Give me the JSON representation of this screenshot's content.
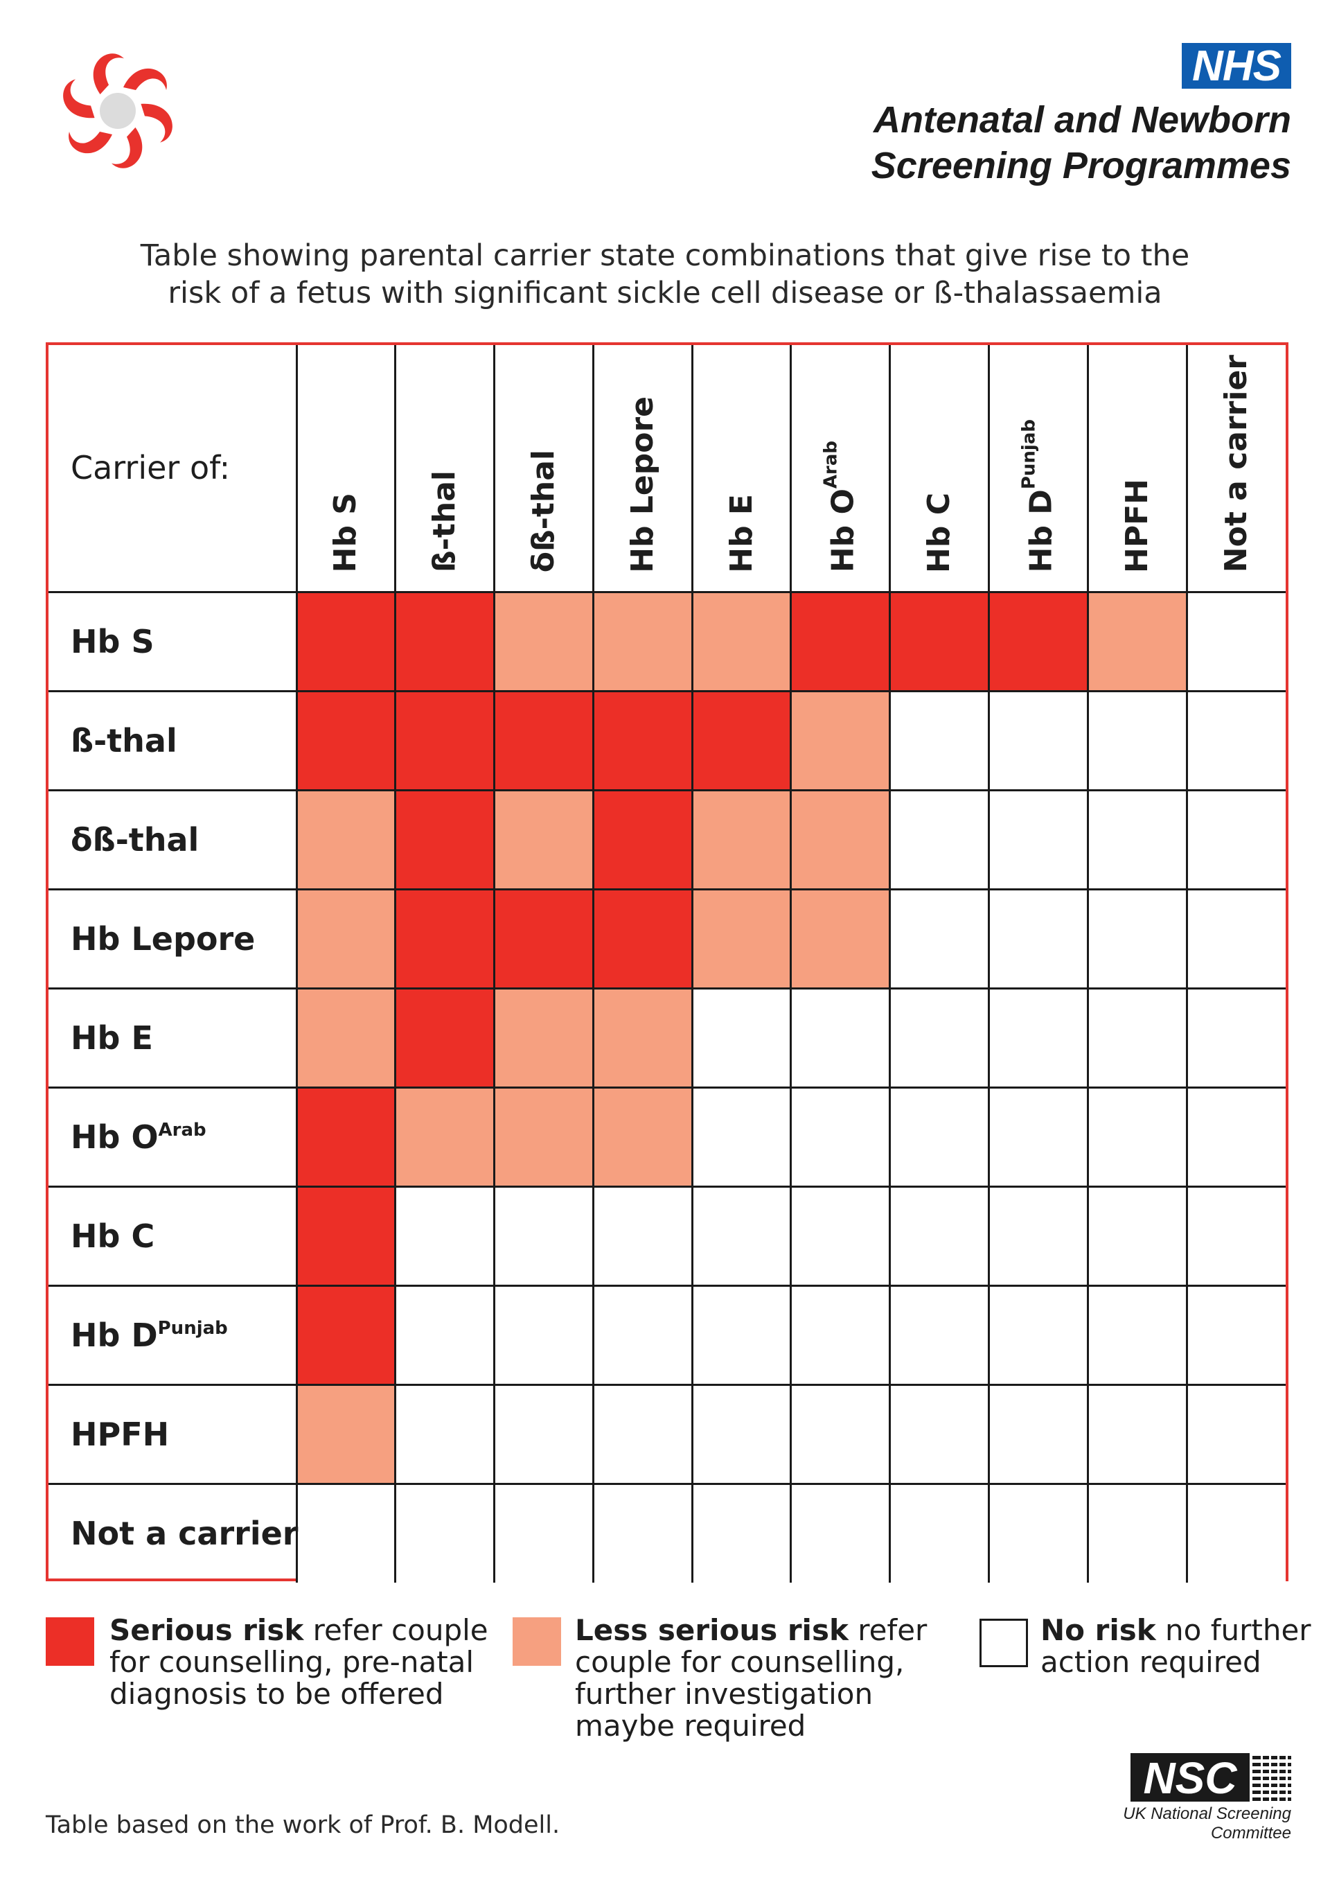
{
  "header": {
    "nhs_badge": "NHS",
    "org_line_1": "Antenatal and Newborn",
    "org_line_2": "Screening Programmes",
    "caption_line_1": "Table showing parental carrier state combinations that give rise to the",
    "caption_line_2": "risk of a fetus with significant sickle cell disease or ß-thalassaemia"
  },
  "table": {
    "corner_label": "Carrier of:",
    "columns": [
      {
        "base": "Hb S",
        "sup": ""
      },
      {
        "base": "ß-thal",
        "sup": ""
      },
      {
        "base": "δß-thal",
        "sup": ""
      },
      {
        "base": "Hb Lepore",
        "sup": ""
      },
      {
        "base": "Hb E",
        "sup": ""
      },
      {
        "base": "Hb O",
        "sup": "Arab"
      },
      {
        "base": "Hb C",
        "sup": ""
      },
      {
        "base": "Hb D",
        "sup": "Punjab"
      },
      {
        "base": "HPFH",
        "sup": ""
      },
      {
        "base": "Not a carrier",
        "sup": ""
      }
    ],
    "rows": [
      {
        "base": "Hb S",
        "sup": "",
        "cells": [
          "serious",
          "serious",
          "less",
          "less",
          "less",
          "serious",
          "serious",
          "serious",
          "less",
          "none"
        ]
      },
      {
        "base": "ß-thal",
        "sup": "",
        "cells": [
          "serious",
          "serious",
          "serious",
          "serious",
          "serious",
          "less",
          "none",
          "none",
          "none",
          "none"
        ]
      },
      {
        "base": "δß-thal",
        "sup": "",
        "cells": [
          "less",
          "serious",
          "less",
          "serious",
          "less",
          "less",
          "none",
          "none",
          "none",
          "none"
        ]
      },
      {
        "base": "Hb Lepore",
        "sup": "",
        "cells": [
          "less",
          "serious",
          "serious",
          "serious",
          "less",
          "less",
          "none",
          "none",
          "none",
          "none"
        ]
      },
      {
        "base": "Hb E",
        "sup": "",
        "cells": [
          "less",
          "serious",
          "less",
          "less",
          "none",
          "none",
          "none",
          "none",
          "none",
          "none"
        ]
      },
      {
        "base": "Hb O",
        "sup": "Arab",
        "cells": [
          "serious",
          "less",
          "less",
          "less",
          "none",
          "none",
          "none",
          "none",
          "none",
          "none"
        ]
      },
      {
        "base": "Hb C",
        "sup": "",
        "cells": [
          "serious",
          "none",
          "none",
          "none",
          "none",
          "none",
          "none",
          "none",
          "none",
          "none"
        ]
      },
      {
        "base": "Hb D",
        "sup": "Punjab",
        "cells": [
          "serious",
          "none",
          "none",
          "none",
          "none",
          "none",
          "none",
          "none",
          "none",
          "none"
        ]
      },
      {
        "base": "HPFH",
        "sup": "",
        "cells": [
          "less",
          "none",
          "none",
          "none",
          "none",
          "none",
          "none",
          "none",
          "none",
          "none"
        ]
      },
      {
        "base": "Not a carrier",
        "sup": "",
        "cells": [
          "none",
          "none",
          "none",
          "none",
          "none",
          "none",
          "none",
          "none",
          "none",
          "none"
        ]
      }
    ]
  },
  "legend": {
    "serious_bold": "Serious risk",
    "serious_rest": "refer couple for counselling, pre-natal diagnosis to be offered",
    "less_bold": "Less serious risk",
    "less_rest": "refer couple for counselling, further investigation maybe required",
    "none_bold": "No risk",
    "none_rest": "no further action required"
  },
  "footer": {
    "footnote": "Table based on the work of Prof. B. Modell.",
    "nsc_logo_text": "NSC",
    "nsc_caption_1": "UK National Screening",
    "nsc_caption_2": "Committee"
  },
  "colors": {
    "serious": "#ec2f27",
    "less": "#f6a080",
    "none": "#ffffff",
    "table_border": "#e53531",
    "nhs_blue": "#0f5db0"
  },
  "icons": {
    "programme_logo": "red-swirl-logo-icon",
    "nsc_logo": "nsc-logo-icon"
  }
}
